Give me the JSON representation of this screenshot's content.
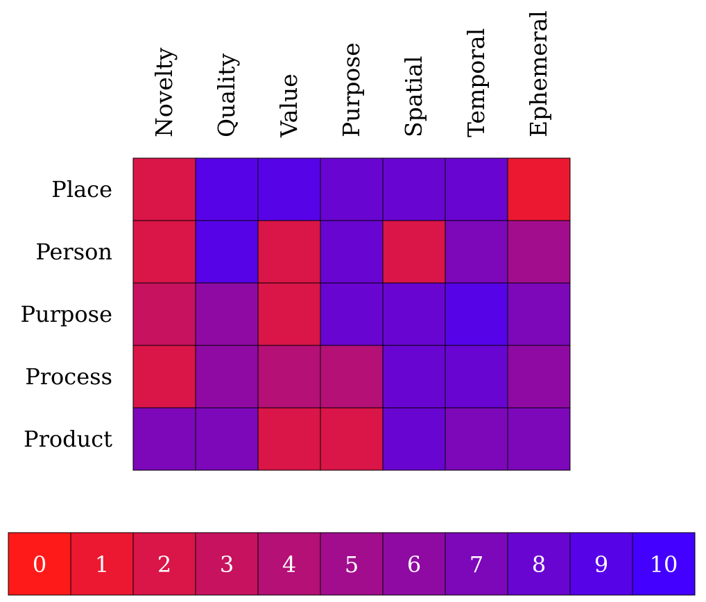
{
  "chart_data": {
    "type": "heatmap",
    "columns": [
      "Novelty",
      "Quality",
      "Value",
      "Purpose",
      "Spatial",
      "Temporal",
      "Ephemeral"
    ],
    "rows": [
      "Place",
      "Person",
      "Purpose",
      "Process",
      "Product"
    ],
    "values": [
      [
        2,
        9,
        9,
        8,
        8,
        8,
        1
      ],
      [
        2,
        9,
        2,
        8,
        2,
        7,
        5
      ],
      [
        3,
        6,
        2,
        8,
        8,
        9,
        7
      ],
      [
        2,
        6,
        4,
        4,
        8,
        8,
        6
      ],
      [
        7,
        7,
        2,
        2,
        8,
        7,
        7
      ]
    ],
    "colorbar": {
      "min": 0,
      "max": 10,
      "ticks": [
        "0",
        "1",
        "2",
        "3",
        "4",
        "5",
        "6",
        "7",
        "8",
        "9",
        "10"
      ],
      "low_color": "#ff1a1a",
      "high_color": "#4400ff",
      "orientation": "horizontal",
      "placement": "bottom"
    }
  }
}
